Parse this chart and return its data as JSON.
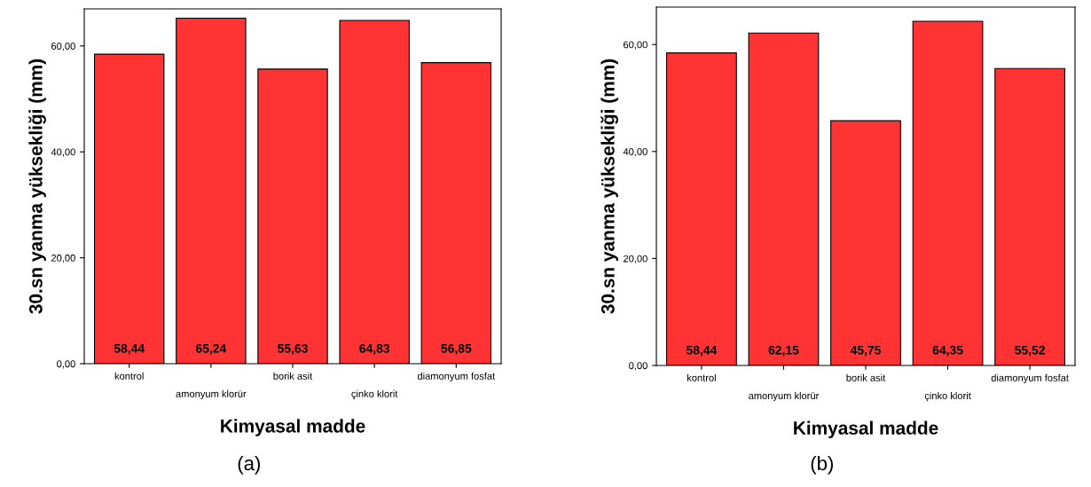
{
  "chart_data": [
    {
      "type": "bar",
      "xlabel": "Kimyasal madde",
      "ylabel": "30.sn yanma yüksekliği (mm)",
      "categories": [
        "kontrol",
        "amonyum klorür",
        "borik asit",
        "çinko klorit",
        "diamonyum fosfat"
      ],
      "values": [
        58.44,
        65.24,
        55.63,
        64.83,
        56.85
      ],
      "value_labels": [
        "58,44",
        "65,24",
        "55,63",
        "64,83",
        "56,85"
      ],
      "color": "#ff3333",
      "ylim": [
        0,
        67
      ],
      "yticks": [
        {
          "value": 0,
          "label": "0,00"
        },
        {
          "value": 20,
          "label": "20,00"
        },
        {
          "value": 40,
          "label": "40,00"
        },
        {
          "value": 60,
          "label": "60,00"
        }
      ],
      "grid": false,
      "annotations": [
        "(a)"
      ]
    },
    {
      "type": "bar",
      "xlabel": "Kimyasal madde",
      "ylabel": "30.sn yanma yüksekliği (mm)",
      "categories": [
        "kontrol",
        "amonyum klorür",
        "borik asit",
        "çinko klorit",
        "diamonyum fosfat"
      ],
      "values": [
        58.44,
        62.15,
        45.75,
        64.35,
        55.52
      ],
      "value_labels": [
        "58,44",
        "62,15",
        "45,75",
        "64,35",
        "55,52"
      ],
      "color": "#ff3333",
      "ylim": [
        0,
        67
      ],
      "yticks": [
        {
          "value": 0,
          "label": "0,00"
        },
        {
          "value": 20,
          "label": "20,00"
        },
        {
          "value": 40,
          "label": "40,00"
        },
        {
          "value": 60,
          "label": "60,00"
        }
      ],
      "grid": false,
      "annotations": [
        "(b)"
      ]
    }
  ]
}
